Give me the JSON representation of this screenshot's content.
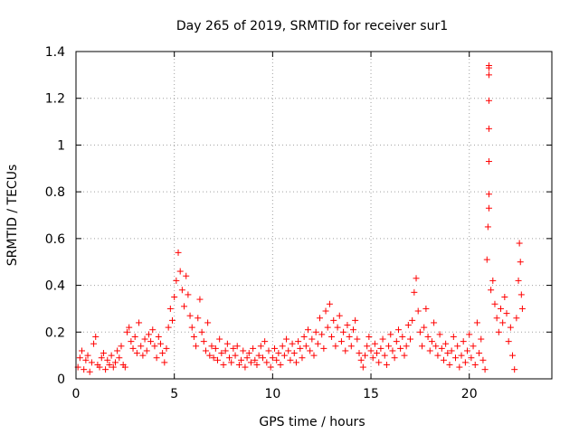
{
  "chart_data": {
    "type": "scatter",
    "title": "Day 265 of 2019, SRMTID for receiver sur1",
    "xlabel": "GPS time / hours",
    "ylabel": "SRMTID / TECUs",
    "xlim": [
      0,
      24.2
    ],
    "ylim": [
      0,
      1.4
    ],
    "xticks": [
      0,
      5,
      10,
      15,
      20
    ],
    "xtick_labels": [
      "0",
      "5",
      "10",
      "15",
      "20"
    ],
    "yticks": [
      0,
      0.2,
      0.4,
      0.6,
      0.8,
      1.0,
      1.2,
      1.4
    ],
    "ytick_labels": [
      "0",
      "0.2",
      "0.4",
      "0.6",
      "0.8",
      "1",
      "1.2",
      "1.4"
    ],
    "grid": true,
    "marker": "plus",
    "color": "#ff0000",
    "series": [
      {
        "name": "sur1",
        "points": [
          [
            0.1,
            0.05
          ],
          [
            0.2,
            0.09
          ],
          [
            0.3,
            0.12
          ],
          [
            0.4,
            0.04
          ],
          [
            0.5,
            0.08
          ],
          [
            0.6,
            0.1
          ],
          [
            0.7,
            0.03
          ],
          [
            0.8,
            0.07
          ],
          [
            0.9,
            0.15
          ],
          [
            1.0,
            0.18
          ],
          [
            1.1,
            0.06
          ],
          [
            1.2,
            0.05
          ],
          [
            1.3,
            0.09
          ],
          [
            1.4,
            0.11
          ],
          [
            1.5,
            0.04
          ],
          [
            1.6,
            0.08
          ],
          [
            1.7,
            0.06
          ],
          [
            1.8,
            0.1
          ],
          [
            1.9,
            0.05
          ],
          [
            2.0,
            0.07
          ],
          [
            2.1,
            0.12
          ],
          [
            2.2,
            0.09
          ],
          [
            2.3,
            0.14
          ],
          [
            2.4,
            0.06
          ],
          [
            2.5,
            0.05
          ],
          [
            2.6,
            0.2
          ],
          [
            2.7,
            0.22
          ],
          [
            2.8,
            0.16
          ],
          [
            2.9,
            0.13
          ],
          [
            3.0,
            0.18
          ],
          [
            3.1,
            0.11
          ],
          [
            3.2,
            0.24
          ],
          [
            3.3,
            0.14
          ],
          [
            3.4,
            0.1
          ],
          [
            3.5,
            0.17
          ],
          [
            3.6,
            0.12
          ],
          [
            3.7,
            0.19
          ],
          [
            3.8,
            0.16
          ],
          [
            3.9,
            0.21
          ],
          [
            4.0,
            0.14
          ],
          [
            4.1,
            0.09
          ],
          [
            4.2,
            0.18
          ],
          [
            4.3,
            0.15
          ],
          [
            4.4,
            0.11
          ],
          [
            4.5,
            0.07
          ],
          [
            4.6,
            0.13
          ],
          [
            4.7,
            0.22
          ],
          [
            4.8,
            0.3
          ],
          [
            4.9,
            0.25
          ],
          [
            5.0,
            0.35
          ],
          [
            5.1,
            0.42
          ],
          [
            5.2,
            0.54
          ],
          [
            5.3,
            0.46
          ],
          [
            5.4,
            0.38
          ],
          [
            5.5,
            0.31
          ],
          [
            5.6,
            0.44
          ],
          [
            5.7,
            0.36
          ],
          [
            5.8,
            0.27
          ],
          [
            5.9,
            0.22
          ],
          [
            6.0,
            0.18
          ],
          [
            6.1,
            0.14
          ],
          [
            6.2,
            0.26
          ],
          [
            6.3,
            0.34
          ],
          [
            6.4,
            0.2
          ],
          [
            6.5,
            0.16
          ],
          [
            6.6,
            0.12
          ],
          [
            6.7,
            0.24
          ],
          [
            6.8,
            0.1
          ],
          [
            6.9,
            0.14
          ],
          [
            7.0,
            0.09
          ],
          [
            7.1,
            0.13
          ],
          [
            7.2,
            0.08
          ],
          [
            7.3,
            0.17
          ],
          [
            7.4,
            0.11
          ],
          [
            7.5,
            0.06
          ],
          [
            7.6,
            0.12
          ],
          [
            7.7,
            0.15
          ],
          [
            7.8,
            0.09
          ],
          [
            7.9,
            0.07
          ],
          [
            8.0,
            0.13
          ],
          [
            8.1,
            0.1
          ],
          [
            8.2,
            0.14
          ],
          [
            8.3,
            0.06
          ],
          [
            8.4,
            0.08
          ],
          [
            8.5,
            0.12
          ],
          [
            8.6,
            0.05
          ],
          [
            8.7,
            0.09
          ],
          [
            8.8,
            0.11
          ],
          [
            8.9,
            0.07
          ],
          [
            9.0,
            0.13
          ],
          [
            9.1,
            0.08
          ],
          [
            9.2,
            0.06
          ],
          [
            9.3,
            0.1
          ],
          [
            9.4,
            0.14
          ],
          [
            9.5,
            0.09
          ],
          [
            9.6,
            0.16
          ],
          [
            9.7,
            0.07
          ],
          [
            9.8,
            0.12
          ],
          [
            9.9,
            0.05
          ],
          [
            10.0,
            0.09
          ],
          [
            10.1,
            0.13
          ],
          [
            10.2,
            0.08
          ],
          [
            10.3,
            0.11
          ],
          [
            10.4,
            0.06
          ],
          [
            10.5,
            0.14
          ],
          [
            10.6,
            0.1
          ],
          [
            10.7,
            0.17
          ],
          [
            10.8,
            0.12
          ],
          [
            10.9,
            0.08
          ],
          [
            11.0,
            0.15
          ],
          [
            11.1,
            0.11
          ],
          [
            11.2,
            0.07
          ],
          [
            11.3,
            0.16
          ],
          [
            11.4,
            0.13
          ],
          [
            11.5,
            0.09
          ],
          [
            11.6,
            0.18
          ],
          [
            11.7,
            0.14
          ],
          [
            11.8,
            0.21
          ],
          [
            11.9,
            0.12
          ],
          [
            12.0,
            0.17
          ],
          [
            12.1,
            0.1
          ],
          [
            12.2,
            0.2
          ],
          [
            12.3,
            0.15
          ],
          [
            12.4,
            0.26
          ],
          [
            12.5,
            0.19
          ],
          [
            12.6,
            0.13
          ],
          [
            12.7,
            0.29
          ],
          [
            12.8,
            0.22
          ],
          [
            12.9,
            0.32
          ],
          [
            13.0,
            0.18
          ],
          [
            13.1,
            0.25
          ],
          [
            13.2,
            0.14
          ],
          [
            13.3,
            0.22
          ],
          [
            13.4,
            0.27
          ],
          [
            13.5,
            0.16
          ],
          [
            13.6,
            0.2
          ],
          [
            13.7,
            0.12
          ],
          [
            13.8,
            0.23
          ],
          [
            13.9,
            0.18
          ],
          [
            14.0,
            0.14
          ],
          [
            14.1,
            0.21
          ],
          [
            14.2,
            0.25
          ],
          [
            14.3,
            0.17
          ],
          [
            14.4,
            0.11
          ],
          [
            14.5,
            0.08
          ],
          [
            14.6,
            0.05
          ],
          [
            14.7,
            0.1
          ],
          [
            14.8,
            0.14
          ],
          [
            14.9,
            0.18
          ],
          [
            15.0,
            0.12
          ],
          [
            15.1,
            0.09
          ],
          [
            15.2,
            0.15
          ],
          [
            15.3,
            0.11
          ],
          [
            15.4,
            0.07
          ],
          [
            15.5,
            0.13
          ],
          [
            15.6,
            0.17
          ],
          [
            15.7,
            0.1
          ],
          [
            15.8,
            0.06
          ],
          [
            15.9,
            0.14
          ],
          [
            16.0,
            0.19
          ],
          [
            16.1,
            0.12
          ],
          [
            16.2,
            0.09
          ],
          [
            16.3,
            0.16
          ],
          [
            16.4,
            0.21
          ],
          [
            16.5,
            0.13
          ],
          [
            16.6,
            0.18
          ],
          [
            16.7,
            0.1
          ],
          [
            16.8,
            0.14
          ],
          [
            16.9,
            0.23
          ],
          [
            17.0,
            0.17
          ],
          [
            17.1,
            0.25
          ],
          [
            17.2,
            0.37
          ],
          [
            17.3,
            0.43
          ],
          [
            17.4,
            0.29
          ],
          [
            17.5,
            0.2
          ],
          [
            17.6,
            0.14
          ],
          [
            17.7,
            0.22
          ],
          [
            17.8,
            0.3
          ],
          [
            17.9,
            0.18
          ],
          [
            18.0,
            0.12
          ],
          [
            18.1,
            0.16
          ],
          [
            18.2,
            0.24
          ],
          [
            18.3,
            0.14
          ],
          [
            18.4,
            0.1
          ],
          [
            18.5,
            0.19
          ],
          [
            18.6,
            0.13
          ],
          [
            18.7,
            0.08
          ],
          [
            18.8,
            0.15
          ],
          [
            18.9,
            0.11
          ],
          [
            19.0,
            0.06
          ],
          [
            19.1,
            0.12
          ],
          [
            19.2,
            0.18
          ],
          [
            19.3,
            0.09
          ],
          [
            19.4,
            0.14
          ],
          [
            19.5,
            0.05
          ],
          [
            19.6,
            0.1
          ],
          [
            19.7,
            0.16
          ],
          [
            19.8,
            0.07
          ],
          [
            19.9,
            0.12
          ],
          [
            20.0,
            0.19
          ],
          [
            20.1,
            0.09
          ],
          [
            20.2,
            0.14
          ],
          [
            20.3,
            0.06
          ],
          [
            20.4,
            0.24
          ],
          [
            20.5,
            0.11
          ],
          [
            20.6,
            0.17
          ],
          [
            20.7,
            0.08
          ],
          [
            20.8,
            0.04
          ],
          [
            20.9,
            0.51
          ],
          [
            20.95,
            0.65
          ],
          [
            21.0,
            0.73
          ],
          [
            21.0,
            0.79
          ],
          [
            21.0,
            0.93
          ],
          [
            21.0,
            1.07
          ],
          [
            21.0,
            1.19
          ],
          [
            21.0,
            1.3
          ],
          [
            21.0,
            1.33
          ],
          [
            21.0,
            1.34
          ],
          [
            21.1,
            0.38
          ],
          [
            21.2,
            0.42
          ],
          [
            21.3,
            0.32
          ],
          [
            21.4,
            0.26
          ],
          [
            21.5,
            0.2
          ],
          [
            21.6,
            0.3
          ],
          [
            21.7,
            0.24
          ],
          [
            21.8,
            0.35
          ],
          [
            21.9,
            0.28
          ],
          [
            22.0,
            0.16
          ],
          [
            22.1,
            0.22
          ],
          [
            22.2,
            0.1
          ],
          [
            22.3,
            0.04
          ],
          [
            22.4,
            0.26
          ],
          [
            22.5,
            0.42
          ],
          [
            22.55,
            0.58
          ],
          [
            22.6,
            0.5
          ],
          [
            22.65,
            0.36
          ],
          [
            22.7,
            0.3
          ]
        ]
      }
    ]
  }
}
